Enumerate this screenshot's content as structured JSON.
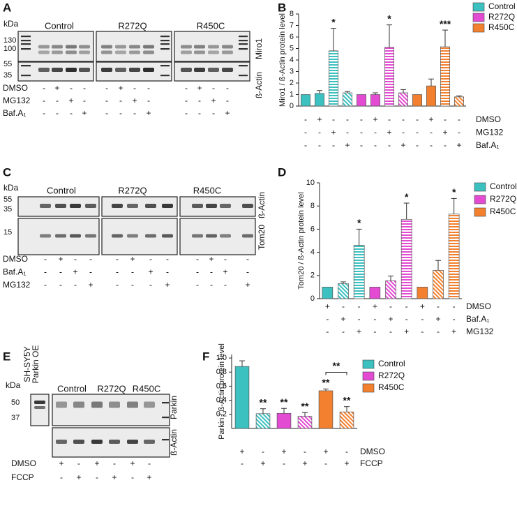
{
  "panel_labels": [
    "A",
    "B",
    "C",
    "D",
    "E",
    "F"
  ],
  "blot_a": {
    "unit": "kDa",
    "markers": [
      130,
      100,
      55,
      35
    ],
    "groups": [
      "Control",
      "R272Q",
      "R450C"
    ],
    "proteins": [
      "Miro1",
      "ß-Actin"
    ],
    "treatments": [
      {
        "name": "DMSO",
        "marks": [
          "-",
          "+",
          "-",
          "-",
          "-",
          "+",
          "-",
          "-",
          "-",
          "+",
          "-",
          "-"
        ]
      },
      {
        "name": "MG132",
        "marks": [
          "-",
          "-",
          "+",
          "-",
          "-",
          "-",
          "+",
          "-",
          "-",
          "-",
          "+",
          "-"
        ]
      },
      {
        "name": "Baf.A₁",
        "marks": [
          "-",
          "-",
          "-",
          "+",
          "-",
          "-",
          "-",
          "+",
          "-",
          "-",
          "-",
          "+"
        ]
      }
    ]
  },
  "blot_c": {
    "unit": "kDa",
    "markers": [
      55,
      35,
      15
    ],
    "groups": [
      "Control",
      "R272Q",
      "R450C"
    ],
    "proteins": [
      "ß-Actin",
      "Tom20"
    ],
    "treatments": [
      {
        "name": "DMSO",
        "marks": [
          "-",
          "+",
          "-",
          "-",
          "-",
          "+",
          "-",
          "-",
          "-",
          "+",
          "-",
          "-"
        ]
      },
      {
        "name": "Baf.A₁",
        "marks": [
          "-",
          "-",
          "+",
          "-",
          "-",
          "-",
          "+",
          "-",
          "-",
          "-",
          "+",
          "-"
        ]
      },
      {
        "name": "MG132",
        "marks": [
          "-",
          "-",
          "-",
          "+",
          "-",
          "-",
          "-",
          "+",
          "-",
          "-",
          "-",
          "+"
        ]
      }
    ]
  },
  "blot_e": {
    "unit": "kDa",
    "markers": [
      50,
      37
    ],
    "overexpression_lane": [
      "SH-SY5Y",
      "Parkin OE"
    ],
    "groups": [
      "Control",
      "R272Q",
      "R450C"
    ],
    "proteins": [
      "Parkin",
      "ß-Actin"
    ],
    "treatments": [
      {
        "name": "DMSO",
        "marks": [
          "+",
          "-",
          "+",
          "-",
          "+",
          "-"
        ]
      },
      {
        "name": "FCCP",
        "marks": [
          "-",
          "+",
          "-",
          "+",
          "-",
          "+"
        ]
      }
    ]
  },
  "chart_data": [
    {
      "type": "bar",
      "ylabel": "Miro1 / ß-Actin protein level",
      "ylim": [
        0,
        8
      ],
      "yticks": [
        0,
        1,
        2,
        3,
        4,
        5,
        6,
        7,
        8
      ],
      "patterns": [
        "solid",
        "solid",
        "stripes",
        "diagonal"
      ],
      "legend": "upper right",
      "series": [
        {
          "name": "Control",
          "color": "#3cc0c0",
          "values": [
            1,
            1.1,
            4.8,
            1.15
          ],
          "errors": [
            null,
            0.25,
            1.95,
            0.12
          ],
          "sig_labels": [
            null,
            null,
            "*",
            null
          ]
        },
        {
          "name": "R272Q",
          "color": "#e24bd2",
          "values": [
            1,
            1.0,
            5.1,
            1.15
          ],
          "errors": [
            null,
            0.15,
            1.95,
            0.28
          ],
          "sig_labels": [
            null,
            null,
            "*",
            null
          ]
        },
        {
          "name": "R450C",
          "color": "#f2802e",
          "values": [
            1,
            1.75,
            5.15,
            0.8
          ],
          "errors": [
            null,
            0.6,
            1.45,
            0.08
          ],
          "sig_labels": [
            null,
            null,
            "***",
            null
          ]
        }
      ],
      "conditions": [
        {
          "name": "DMSO",
          "marks": [
            "-",
            "+",
            "-",
            "-",
            "-",
            "+",
            "-",
            "-",
            "-",
            "+",
            "-",
            "-"
          ]
        },
        {
          "name": "MG132",
          "marks": [
            "-",
            "-",
            "+",
            "-",
            "-",
            "-",
            "+",
            "-",
            "-",
            "-",
            "+",
            "-"
          ]
        },
        {
          "name": "Baf.A₁",
          "marks": [
            "-",
            "-",
            "-",
            "+",
            "-",
            "-",
            "-",
            "+",
            "-",
            "-",
            "-",
            "+"
          ]
        }
      ]
    },
    {
      "type": "bar",
      "ylabel": "Tom20 / ß-Actin protein level",
      "ylim": [
        0,
        10
      ],
      "yticks": [
        0,
        2,
        4,
        6,
        8,
        10
      ],
      "patterns": [
        "solid",
        "diagonal",
        "stripes"
      ],
      "legend": "upper right",
      "series": [
        {
          "name": "Control",
          "color": "#3cc0c0",
          "values": [
            1,
            1.3,
            4.6
          ],
          "errors": [
            null,
            0.15,
            1.4
          ],
          "sig_labels": [
            null,
            null,
            "*"
          ]
        },
        {
          "name": "R272Q",
          "color": "#e24bd2",
          "values": [
            1,
            1.55,
            6.85
          ],
          "errors": [
            null,
            0.4,
            1.4
          ],
          "sig_labels": [
            null,
            null,
            "*"
          ]
        },
        {
          "name": "R450C",
          "color": "#f2802e",
          "values": [
            1,
            2.45,
            7.3
          ],
          "errors": [
            null,
            0.85,
            1.35
          ],
          "sig_labels": [
            null,
            null,
            "*"
          ]
        }
      ],
      "conditions": [
        {
          "name": "DMSO",
          "marks": [
            "+",
            "-",
            "-",
            "+",
            "-",
            "-",
            "+",
            "-",
            "-"
          ]
        },
        {
          "name": "Baf.A₁",
          "marks": [
            "-",
            "+",
            "-",
            "-",
            "+",
            "-",
            "-",
            "+",
            "-"
          ]
        },
        {
          "name": "MG132",
          "marks": [
            "-",
            "-",
            "+",
            "-",
            "-",
            "+",
            "-",
            "-",
            "+"
          ]
        }
      ]
    },
    {
      "type": "bar",
      "ylabel": "Parkin / ß-Actin protein level",
      "ylim": [
        0,
        1.05
      ],
      "yticks": [
        0.2,
        0.4,
        0.6,
        0.8,
        {
          "value": 1,
          "label": "1.0"
        }
      ],
      "patterns": [
        "solid",
        "diagonal"
      ],
      "legend": "upper right",
      "series": [
        {
          "name": "Control",
          "color": "#3cc0c0",
          "values": [
            0.88,
            0.21
          ],
          "errors": [
            0.08,
            0.07
          ],
          "sig_labels": [
            null,
            "**"
          ]
        },
        {
          "name": "R272Q",
          "color": "#e24bd2",
          "values": [
            0.215,
            0.175
          ],
          "errors": [
            0.07,
            0.05
          ],
          "sig_labels": [
            "**",
            "**"
          ]
        },
        {
          "name": "R450C",
          "color": "#f2802e",
          "values": [
            0.535,
            0.235
          ],
          "errors": [
            0.025,
            0.075
          ],
          "sig_labels": [
            "**",
            "**"
          ],
          "bracket_label": "**"
        }
      ],
      "conditions": [
        {
          "name": "DMSO",
          "marks": [
            "+",
            "-",
            "+",
            "-",
            "+",
            "-"
          ]
        },
        {
          "name": "FCCP",
          "marks": [
            "-",
            "+",
            "-",
            "+",
            "-",
            "+"
          ]
        }
      ]
    }
  ]
}
